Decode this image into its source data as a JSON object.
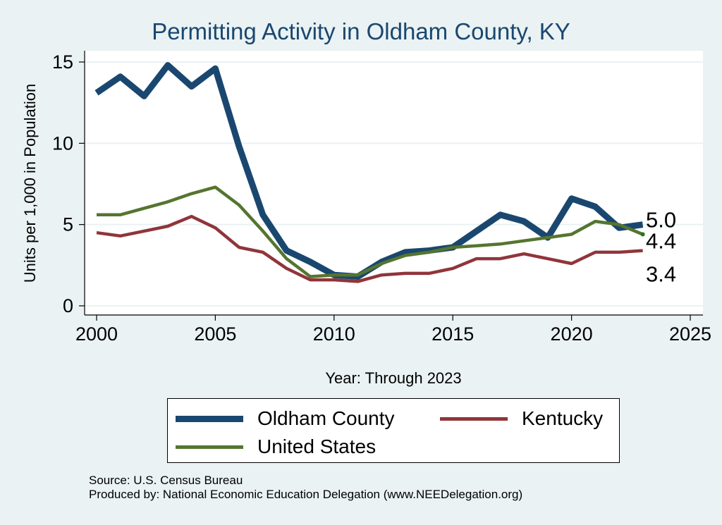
{
  "chart_data": {
    "type": "line",
    "title": "Permitting Activity in Oldham County, KY",
    "xlabel": "Year: Through 2023",
    "ylabel": "Units per 1,000 in Population",
    "xlim": [
      2000,
      2025
    ],
    "ylim": [
      0,
      15
    ],
    "x_ticks": [
      "2000",
      "2005",
      "2010",
      "2015",
      "2020",
      "2025"
    ],
    "y_ticks": [
      "0",
      "5",
      "10",
      "15"
    ],
    "grid": true,
    "x": [
      2000,
      2001,
      2002,
      2003,
      2004,
      2005,
      2006,
      2007,
      2008,
      2009,
      2010,
      2011,
      2012,
      2013,
      2014,
      2015,
      2016,
      2017,
      2018,
      2019,
      2020,
      2021,
      2022,
      2023
    ],
    "series": [
      {
        "name": "Oldham County",
        "color": "#1a476f",
        "values": [
          13.1,
          14.1,
          12.9,
          14.8,
          13.5,
          14.6,
          9.8,
          5.6,
          3.4,
          2.7,
          1.9,
          1.8,
          2.7,
          3.3,
          3.4,
          3.6,
          4.6,
          5.6,
          5.2,
          4.2,
          6.6,
          6.1,
          4.8,
          5.0
        ]
      },
      {
        "name": "Kentucky",
        "color": "#90353b",
        "values": [
          4.5,
          4.3,
          4.6,
          4.9,
          5.5,
          4.8,
          3.6,
          3.3,
          2.3,
          1.6,
          1.6,
          1.5,
          1.9,
          2.0,
          2.0,
          2.3,
          2.9,
          2.9,
          3.2,
          2.9,
          2.6,
          3.3,
          3.3,
          3.4
        ]
      },
      {
        "name": "United States",
        "color": "#55752f",
        "values": [
          5.6,
          5.6,
          6.0,
          6.4,
          6.9,
          7.3,
          6.2,
          4.6,
          2.9,
          1.8,
          1.9,
          1.9,
          2.6,
          3.1,
          3.3,
          3.6,
          3.7,
          3.8,
          4.0,
          4.2,
          4.4,
          5.2,
          5.0,
          4.4
        ]
      }
    ],
    "end_labels": [
      "5.0",
      "4.4",
      "3.4"
    ],
    "legend": [
      "Oldham County",
      "Kentucky",
      "United States"
    ],
    "legend_position": "bottom",
    "colors": {
      "background": "#eaf2f3",
      "plot_background": "#ffffff",
      "gridline": "#eaf2f3"
    }
  },
  "source_line": "Source: U.S. Census Bureau",
  "produced_line": "Produced by: National Economic Education Delegation (www.NEEDelegation.org)"
}
